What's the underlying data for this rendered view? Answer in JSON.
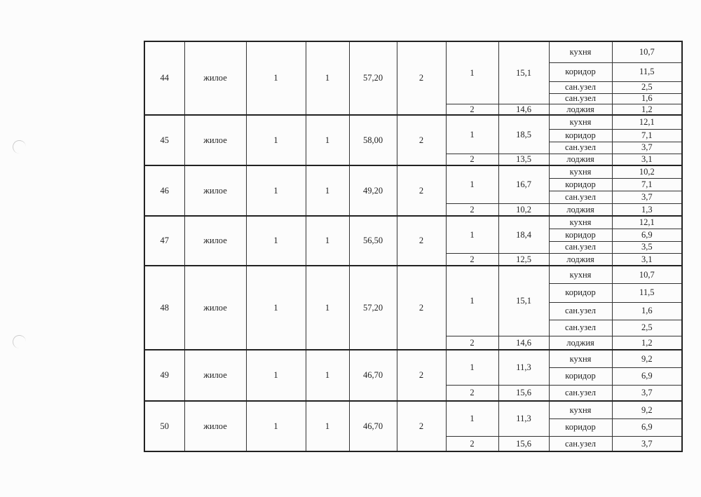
{
  "apartments": [
    {
      "num": "44",
      "type": "жилое",
      "col3": "1",
      "col4": "1",
      "area": "57,20",
      "rooms_count": "2",
      "rooms": [
        {
          "n": "1",
          "area": "15,1",
          "aux": [
            {
              "name": "кухня",
              "area": "10,7"
            },
            {
              "name": "коридор",
              "area": "11,5"
            },
            {
              "name": "сан.узел",
              "area": "2,5"
            },
            {
              "name": "сан.узел",
              "area": "1,6"
            }
          ]
        },
        {
          "n": "2",
          "area": "14,6",
          "aux": [
            {
              "name": "лоджия",
              "area": "1,2"
            }
          ]
        }
      ]
    },
    {
      "num": "45",
      "type": "жилое",
      "col3": "1",
      "col4": "1",
      "area": "58,00",
      "rooms_count": "2",
      "rooms": [
        {
          "n": "1",
          "area": "18,5",
          "aux": [
            {
              "name": "кухня",
              "area": "12,1"
            },
            {
              "name": "коридор",
              "area": "7,1"
            },
            {
              "name": "сан.узел",
              "area": "3,7"
            }
          ]
        },
        {
          "n": "2",
          "area": "13,5",
          "aux": [
            {
              "name": "лоджия",
              "area": "3,1"
            }
          ]
        }
      ]
    },
    {
      "num": "46",
      "type": "жилое",
      "col3": "1",
      "col4": "1",
      "area": "49,20",
      "rooms_count": "2",
      "rooms": [
        {
          "n": "1",
          "area": "16,7",
          "aux": [
            {
              "name": "кухня",
              "area": "10,2"
            },
            {
              "name": "коридор",
              "area": "7,1"
            },
            {
              "name": "сан.узел",
              "area": "3,7"
            }
          ]
        },
        {
          "n": "2",
          "area": "10,2",
          "aux": [
            {
              "name": "лоджия",
              "area": "1,3"
            }
          ]
        }
      ]
    },
    {
      "num": "47",
      "type": "жилое",
      "col3": "1",
      "col4": "1",
      "area": "56,50",
      "rooms_count": "2",
      "rooms": [
        {
          "n": "1",
          "area": "18,4",
          "aux": [
            {
              "name": "кухня",
              "area": "12,1"
            },
            {
              "name": "коридор",
              "area": "6,9"
            },
            {
              "name": "сан.узел",
              "area": "3,5"
            }
          ]
        },
        {
          "n": "2",
          "area": "12,5",
          "aux": [
            {
              "name": "лоджия",
              "area": "3,1"
            }
          ]
        }
      ]
    },
    {
      "num": "48",
      "type": "жилое",
      "col3": "1",
      "col4": "1",
      "area": "57,20",
      "rooms_count": "2",
      "rooms": [
        {
          "n": "1",
          "area": "15,1",
          "aux": [
            {
              "name": "кухня",
              "area": "10,7"
            },
            {
              "name": "коридор",
              "area": "11,5"
            },
            {
              "name": "сан.узел",
              "area": "1,6"
            },
            {
              "name": "сан.узел",
              "area": "2,5"
            }
          ]
        },
        {
          "n": "2",
          "area": "14,6",
          "aux": [
            {
              "name": "лоджия",
              "area": "1,2"
            }
          ]
        }
      ]
    },
    {
      "num": "49",
      "type": "жилое",
      "col3": "1",
      "col4": "1",
      "area": "46,70",
      "rooms_count": "2",
      "rooms": [
        {
          "n": "1",
          "area": "11,3",
          "aux": [
            {
              "name": "кухня",
              "area": "9,2"
            },
            {
              "name": "коридор",
              "area": "6,9"
            }
          ]
        },
        {
          "n": "2",
          "area": "15,6",
          "aux": [
            {
              "name": "сан.узел",
              "area": "3,7"
            }
          ]
        }
      ]
    },
    {
      "num": "50",
      "type": "жилое",
      "col3": "1",
      "col4": "1",
      "area": "46,70",
      "rooms_count": "2",
      "rooms": [
        {
          "n": "1",
          "area": "11,3",
          "aux": [
            {
              "name": "кухня",
              "area": "9,2"
            },
            {
              "name": "коридор",
              "area": "6,9"
            }
          ]
        },
        {
          "n": "2",
          "area": "15,6",
          "aux": [
            {
              "name": "сан.узел",
              "area": "3,7"
            }
          ]
        }
      ]
    }
  ]
}
